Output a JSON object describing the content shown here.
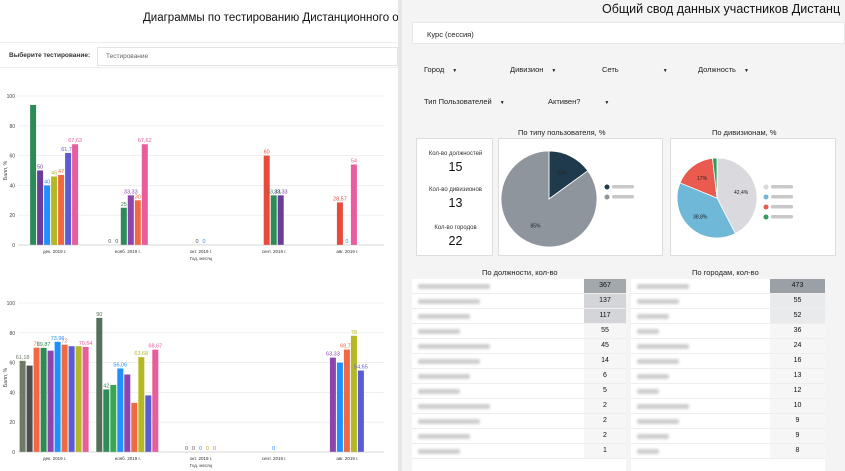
{
  "left": {
    "title": "Диаграммы по тестированию Дистанционного обучения",
    "select_label": "Выберите тестирование:",
    "select_placeholder": "Тестирование"
  },
  "chart_data": [
    {
      "type": "bar",
      "ylabel": "Балл, %",
      "xlabel": "Год, месяц",
      "ylim": [
        0,
        100
      ],
      "yticks": [
        0,
        20,
        40,
        60,
        80,
        100
      ],
      "categories": [
        "дек. 2019 г.",
        "нояб. 2019 г.",
        "окт. 2019 г.",
        "сент. 2019 г.",
        "авг. 2019 г."
      ],
      "groups": [
        {
          "bars": [
            {
              "v": 94,
              "c": "#2e8b57",
              "l": ""
            },
            {
              "v": 50,
              "c": "#6a3d9a",
              "l": "50"
            },
            {
              "v": 40,
              "c": "#1e90ff",
              "l": "40"
            },
            {
              "v": 46,
              "c": "#b5b825",
              "l": "46"
            },
            {
              "v": 47,
              "c": "#f06a41",
              "l": "47"
            },
            {
              "v": 61.78,
              "c": "#5b5bd6",
              "l": "61,78"
            },
            {
              "v": 67.63,
              "c": "#e85d9a",
              "l": "67,63"
            }
          ]
        },
        {
          "bars": [
            {
              "v": 0,
              "c": "#555",
              "l": "0"
            },
            {
              "v": 0,
              "c": "#555",
              "l": "0"
            },
            {
              "v": 25,
              "c": "#2e8b57",
              "l": "25"
            },
            {
              "v": 33.33,
              "c": "#8e44ad",
              "l": "33,33"
            },
            {
              "v": 30,
              "c": "#f06a41",
              "l": "30"
            },
            {
              "v": 67.62,
              "c": "#e85d9a",
              "l": "67,62"
            }
          ]
        },
        {
          "bars": [
            {
              "v": 0,
              "c": "#555",
              "l": "0"
            },
            {
              "v": 0,
              "c": "#1e90ff",
              "l": "0"
            }
          ]
        },
        {
          "bars": [
            {
              "v": 60,
              "c": "#e84a3c",
              "l": "60"
            },
            {
              "v": 33.33,
              "c": "#2e8b57",
              "l": "33,33"
            },
            {
              "v": 33.33,
              "c": "#6a3d9a",
              "l": "33,33"
            }
          ]
        },
        {
          "bars": [
            {
              "v": 28.57,
              "c": "#e84a3c",
              "l": "28,57"
            },
            {
              "v": 0,
              "c": "#1e90ff",
              "l": "0"
            },
            {
              "v": 54,
              "c": "#e85d9a",
              "l": "54"
            }
          ]
        }
      ]
    },
    {
      "type": "bar",
      "ylabel": "Балл, %",
      "xlabel": "Год, месяц",
      "ylim": [
        0,
        100
      ],
      "yticks": [
        0,
        20,
        40,
        60,
        80,
        100
      ],
      "categories": [
        "дек. 2019 г.",
        "нояб. 2019 г.",
        "окт. 2019 г.",
        "сент. 2019 г.",
        "авг. 2019 г."
      ],
      "groups": [
        {
          "bars": [
            {
              "v": 61.18,
              "c": "#6c7a64",
              "l": "61,18"
            },
            {
              "v": 58,
              "c": "#4d4d4d",
              "l": ""
            },
            {
              "v": 70,
              "c": "#f06a41",
              "l": "70"
            },
            {
              "v": 69.87,
              "c": "#2e8b57",
              "l": "69,87"
            },
            {
              "v": 68,
              "c": "#8e44ad",
              "l": ""
            },
            {
              "v": 73.96,
              "c": "#1e90ff",
              "l": "73,96"
            },
            {
              "v": 72,
              "c": "#f06a41",
              "l": "72"
            },
            {
              "v": 71,
              "c": "#5b5bd6",
              "l": ""
            },
            {
              "v": 71,
              "c": "#b5b825",
              "l": ""
            },
            {
              "v": 70.54,
              "c": "#e85d9a",
              "l": "70,54"
            }
          ]
        },
        {
          "bars": [
            {
              "v": 90,
              "c": "#55705a",
              "l": "90"
            },
            {
              "v": 42,
              "c": "#2e8b57",
              "l": "42"
            },
            {
              "v": 45,
              "c": "#3aa655",
              "l": ""
            },
            {
              "v": 56.06,
              "c": "#1e90ff",
              "l": "56,06"
            },
            {
              "v": 52,
              "c": "#8e44ad",
              "l": ""
            },
            {
              "v": 33,
              "c": "#f06a41",
              "l": ""
            },
            {
              "v": 63.68,
              "c": "#b5b825",
              "l": "63,68"
            },
            {
              "v": 38,
              "c": "#5b5bd6",
              "l": ""
            },
            {
              "v": 68.67,
              "c": "#e85d9a",
              "l": "68,67"
            }
          ]
        },
        {
          "bars": [
            {
              "v": 0,
              "c": "#555",
              "l": "0"
            },
            {
              "v": 0,
              "c": "#555",
              "l": "0"
            },
            {
              "v": 0,
              "c": "#1e90ff",
              "l": "0"
            },
            {
              "v": 0,
              "c": "#b5b825",
              "l": "0"
            },
            {
              "v": 0,
              "c": "#e85d9a",
              "l": "0"
            }
          ]
        },
        {
          "bars": [
            {
              "v": 0,
              "c": "#1e90ff",
              "l": "0"
            }
          ]
        },
        {
          "bars": [
            {
              "v": 63.33,
              "c": "#8e44ad",
              "l": "63,33"
            },
            {
              "v": 60,
              "c": "#1e90ff",
              "l": ""
            },
            {
              "v": 68.75,
              "c": "#f06a41",
              "l": "68,75"
            },
            {
              "v": 78,
              "c": "#b5b825",
              "l": "78"
            },
            {
              "v": 54.65,
              "c": "#5b5bd6",
              "l": "54,65"
            }
          ]
        }
      ]
    }
  ],
  "right": {
    "title": "Общий свод данных участников Дистанц",
    "course_label": "Курс (сессия)",
    "filters": [
      "Город",
      "Дивизион",
      "Сеть",
      "Должность",
      "Тип Пользователей",
      "Активен?"
    ],
    "filter_arrow": "▼",
    "kpis": [
      {
        "label": "Кол-во должностей",
        "value": "15"
      },
      {
        "label": "Кол-во дивизионов",
        "value": "13"
      },
      {
        "label": "Кол-во городов",
        "value": "22"
      }
    ],
    "pie1": {
      "title": "По типу пользователя, %",
      "slices": [
        {
          "value": 15,
          "label": "15%",
          "color": "#1f3a4d"
        },
        {
          "value": 85,
          "label": "85%",
          "color": "#8e959c"
        }
      ],
      "legend": [
        {
          "color": "#1f3a4d"
        },
        {
          "color": "#8e959c"
        }
      ]
    },
    "pie2": {
      "title": "По дивизионам, %",
      "slices": [
        {
          "value": 42.4,
          "label": "42,4%",
          "color": "#d9d9de"
        },
        {
          "value": 38.8,
          "label": "38,8%",
          "color": "#6fb8d8"
        },
        {
          "value": 17,
          "label": "17%",
          "color": "#ea5a4f"
        },
        {
          "value": 1.8,
          "label": "",
          "color": "#2e9e5a"
        }
      ],
      "legend": [
        {
          "color": "#d9d9de"
        },
        {
          "color": "#6fb8d8"
        },
        {
          "color": "#ea5a4f"
        },
        {
          "color": "#2e9e5a"
        }
      ]
    },
    "table1": {
      "title": "По должности, кол-во",
      "values": [
        "367",
        "137",
        "117",
        "55",
        "45",
        "14",
        "6",
        "5",
        "2",
        "2",
        "2",
        "1"
      ]
    },
    "table2": {
      "title": "По городам, кол-во",
      "values": [
        "473",
        "55",
        "52",
        "36",
        "24",
        "16",
        "13",
        "12",
        "10",
        "9",
        "9",
        "8"
      ]
    }
  }
}
